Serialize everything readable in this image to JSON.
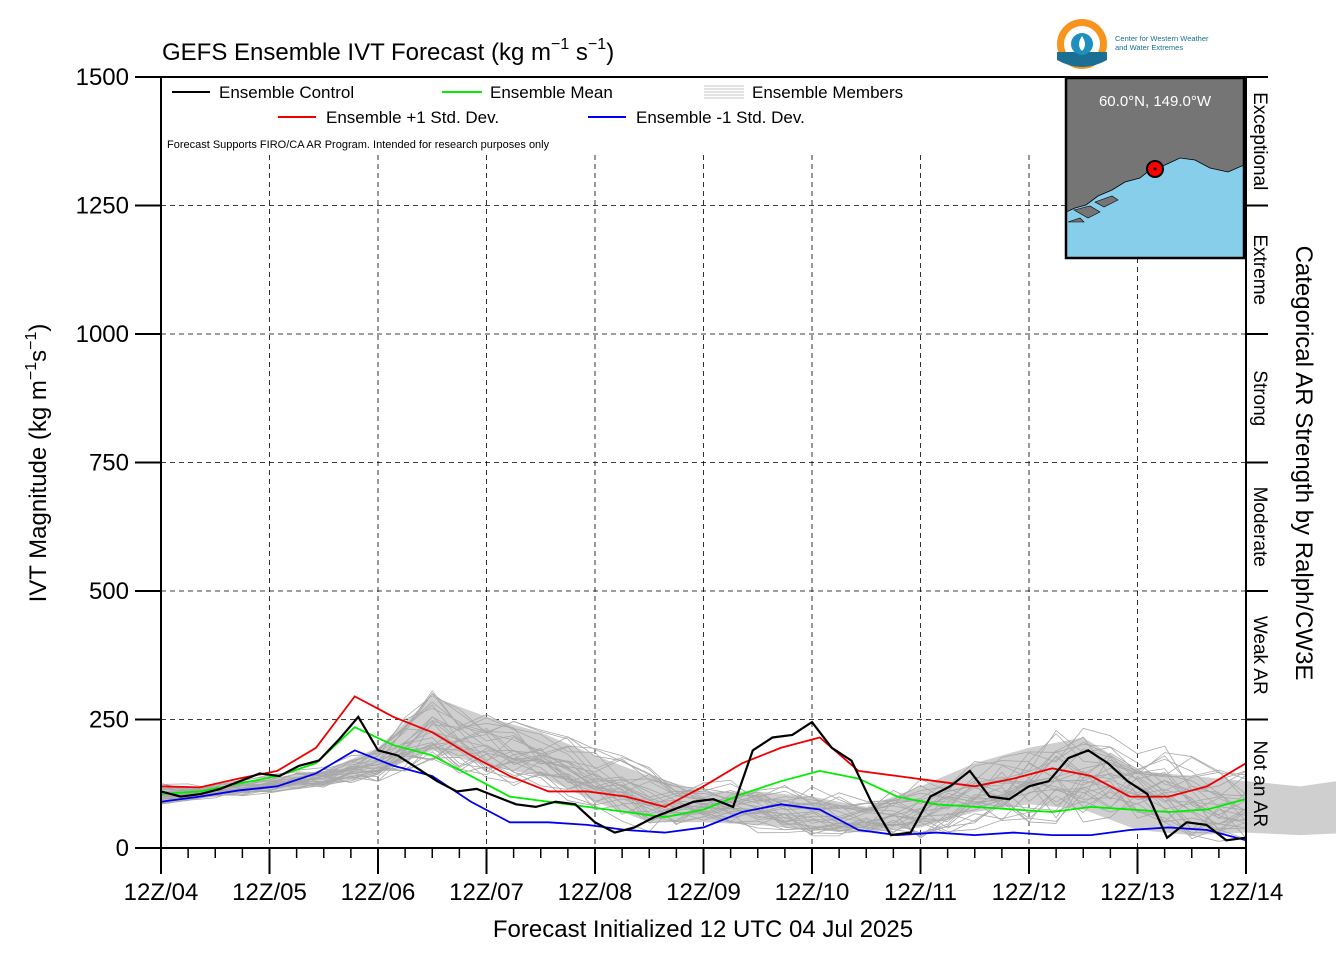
{
  "chart_data": {
    "type": "line",
    "title": "GEFS Ensemble IVT Forecast (kg m",
    "title_sup1": "−1",
    "title_mid": " s",
    "title_sup2": "−1",
    "title_end": ")",
    "ylabel": "IVT Magnitude (kg m",
    "ylabel_sup1": "−1",
    "ylabel_mid": "s",
    "ylabel_sup2": "−1",
    "ylabel_end": ")",
    "right_label": "Categorical AR Strength by Ralph/CW3E",
    "xlabel": "Forecast Initialized 12 UTC 04 Jul 2025",
    "ylim": [
      0,
      1500
    ],
    "yticks": [
      0,
      250,
      500,
      750,
      1000,
      1250,
      1500
    ],
    "x_tick_labels": [
      "12Z/04",
      "12Z/05",
      "12Z/06",
      "12Z/07",
      "12Z/08",
      "12Z/09",
      "12Z/10",
      "12Z/11",
      "12Z/12",
      "12Z/13",
      "12Z/14"
    ],
    "x_range_days": [
      0,
      10
    ],
    "grid": true,
    "legend_position": "top-left",
    "note": "Forecast Supports FIRO/CA AR Program. Intended for research purposes only",
    "categories": [
      {
        "label": "Not an AR",
        "range": [
          0,
          250
        ]
      },
      {
        "label": "Weak AR",
        "range": [
          250,
          500
        ]
      },
      {
        "label": "Moderate",
        "range": [
          500,
          750
        ]
      },
      {
        "label": "Strong",
        "range": [
          750,
          1000
        ]
      },
      {
        "label": "Extreme",
        "range": [
          1000,
          1250
        ]
      },
      {
        "label": "Exceptional",
        "range": [
          1250,
          1500
        ]
      }
    ],
    "series": [
      {
        "name": "Ensemble Control",
        "color": "#000000",
        "points": [
          [
            0,
            110
          ],
          [
            0.25,
            100
          ],
          [
            0.5,
            105
          ],
          [
            0.75,
            115
          ],
          [
            1,
            130
          ],
          [
            1.25,
            145
          ],
          [
            1.5,
            140
          ],
          [
            1.75,
            160
          ],
          [
            2,
            170
          ],
          [
            2.25,
            210
          ],
          [
            2.5,
            255
          ],
          [
            2.75,
            190
          ],
          [
            3,
            180
          ],
          [
            3.25,
            155
          ],
          [
            3.5,
            130
          ],
          [
            3.75,
            110
          ],
          [
            4,
            115
          ],
          [
            4.25,
            100
          ],
          [
            4.5,
            85
          ],
          [
            4.75,
            80
          ],
          [
            5,
            90
          ],
          [
            5.25,
            85
          ],
          [
            5.5,
            50
          ],
          [
            5.75,
            30
          ],
          [
            6,
            40
          ],
          [
            6.25,
            60
          ],
          [
            6.5,
            75
          ],
          [
            6.75,
            90
          ],
          [
            7,
            95
          ],
          [
            7.25,
            80
          ],
          [
            7.5,
            190
          ],
          [
            7.75,
            215
          ],
          [
            8,
            220
          ],
          [
            8.25,
            245
          ],
          [
            8.5,
            195
          ],
          [
            8.75,
            170
          ],
          [
            9,
            90
          ],
          [
            9.25,
            25
          ],
          [
            9.5,
            30
          ],
          [
            9.75,
            100
          ],
          [
            10,
            120
          ],
          [
            10.25,
            150
          ],
          [
            10.5,
            100
          ],
          [
            10.75,
            95
          ],
          [
            11,
            120
          ],
          [
            11.25,
            130
          ],
          [
            11.5,
            175
          ],
          [
            11.75,
            190
          ],
          [
            12,
            165
          ],
          [
            12.25,
            130
          ],
          [
            12.5,
            105
          ],
          [
            12.75,
            20
          ],
          [
            13,
            50
          ],
          [
            13.25,
            45
          ],
          [
            13.5,
            15
          ],
          [
            13.75,
            20
          ]
        ]
      },
      {
        "name": "Ensemble Mean",
        "color": "#00ee00",
        "points": [
          [
            0,
            105
          ],
          [
            0.5,
            110
          ],
          [
            1,
            125
          ],
          [
            1.5,
            140
          ],
          [
            2,
            165
          ],
          [
            2.5,
            235
          ],
          [
            3,
            200
          ],
          [
            3.5,
            180
          ],
          [
            4,
            140
          ],
          [
            4.5,
            100
          ],
          [
            5,
            90
          ],
          [
            5.5,
            80
          ],
          [
            6,
            70
          ],
          [
            6.5,
            60
          ],
          [
            7,
            75
          ],
          [
            7.5,
            105
          ],
          [
            8,
            130
          ],
          [
            8.5,
            150
          ],
          [
            9,
            135
          ],
          [
            9.5,
            100
          ],
          [
            10,
            85
          ],
          [
            10.5,
            80
          ],
          [
            11,
            75
          ],
          [
            11.5,
            70
          ],
          [
            12,
            80
          ],
          [
            12.5,
            75
          ],
          [
            13,
            70
          ],
          [
            13.5,
            75
          ],
          [
            14,
            95
          ]
        ]
      },
      {
        "name": "Ensemble +1 Std. Dev.",
        "color": "#ee0000",
        "points": [
          [
            0,
            120
          ],
          [
            0.5,
            118
          ],
          [
            1,
            135
          ],
          [
            1.5,
            150
          ],
          [
            2,
            195
          ],
          [
            2.5,
            295
          ],
          [
            3,
            255
          ],
          [
            3.5,
            225
          ],
          [
            4,
            180
          ],
          [
            4.5,
            140
          ],
          [
            5,
            110
          ],
          [
            5.5,
            110
          ],
          [
            6,
            100
          ],
          [
            6.5,
            80
          ],
          [
            7,
            120
          ],
          [
            7.5,
            165
          ],
          [
            8,
            195
          ],
          [
            8.5,
            215
          ],
          [
            9,
            150
          ],
          [
            9.5,
            140
          ],
          [
            10,
            130
          ],
          [
            10.5,
            120
          ],
          [
            11,
            135
          ],
          [
            11.5,
            155
          ],
          [
            12,
            140
          ],
          [
            12.5,
            100
          ],
          [
            13,
            100
          ],
          [
            13.5,
            120
          ],
          [
            14,
            165
          ]
        ]
      },
      {
        "name": "Ensemble -1 Std. Dev.",
        "color": "#0000ee",
        "points": [
          [
            0,
            90
          ],
          [
            0.5,
            100
          ],
          [
            1,
            112
          ],
          [
            1.5,
            120
          ],
          [
            2,
            145
          ],
          [
            2.5,
            190
          ],
          [
            3,
            160
          ],
          [
            3.5,
            140
          ],
          [
            4,
            90
          ],
          [
            4.5,
            50
          ],
          [
            5,
            50
          ],
          [
            5.5,
            45
          ],
          [
            6,
            35
          ],
          [
            6.5,
            30
          ],
          [
            7,
            40
          ],
          [
            7.5,
            70
          ],
          [
            8,
            85
          ],
          [
            8.5,
            75
          ],
          [
            9,
            35
          ],
          [
            9.5,
            25
          ],
          [
            10,
            30
          ],
          [
            10.5,
            25
          ],
          [
            11,
            30
          ],
          [
            11.5,
            25
          ],
          [
            12,
            25
          ],
          [
            12.5,
            35
          ],
          [
            13,
            40
          ],
          [
            13.5,
            35
          ],
          [
            14,
            15
          ]
        ]
      }
    ],
    "members_label": "Ensemble Members",
    "inset": {
      "label": "60.0°N, 149.0°W",
      "land_color": "#757575",
      "water_color": "#87ceeb",
      "marker_color": "#ff0000"
    },
    "logo_text_1": "Center for Western Weather",
    "logo_text_2": "and Water Extremes"
  }
}
